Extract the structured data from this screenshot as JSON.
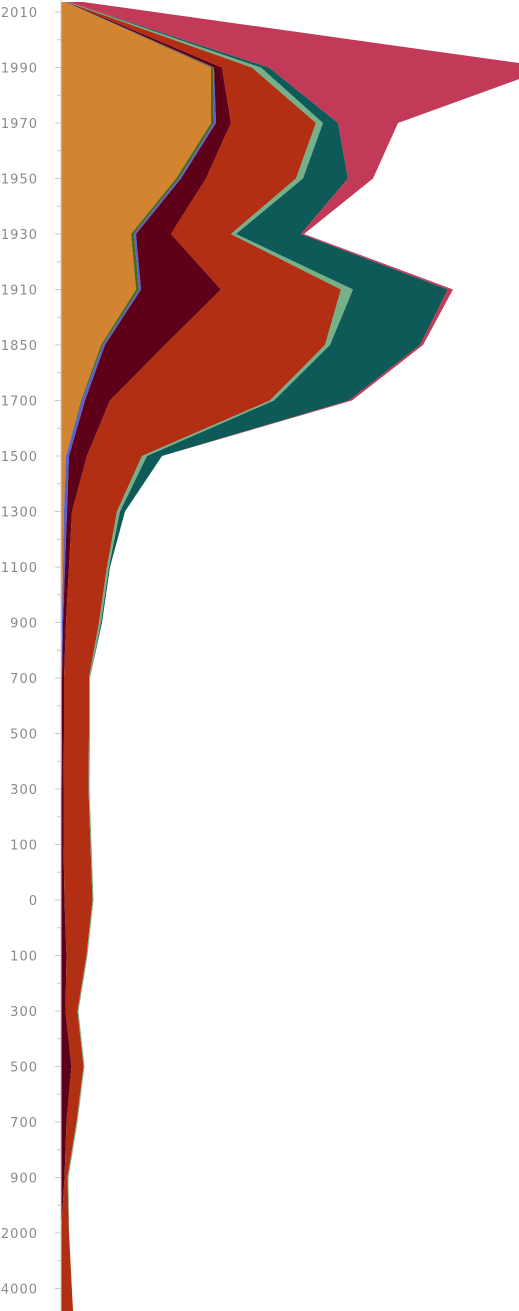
{
  "chart_data": {
    "type": "area",
    "orientation": "vertical-streamgraph",
    "title": "",
    "xlabel": "",
    "ylabel": "",
    "tick_labels": [
      "2010",
      "1990",
      "1970",
      "1950",
      "1930",
      "1910",
      "1850",
      "1700",
      "1500",
      "1300",
      "1100",
      "900",
      "700",
      "500",
      "300",
      "100",
      "0",
      "100",
      "300",
      "500",
      "700",
      "900",
      "2000",
      "4000"
    ],
    "categories": [
      "2010",
      "1990",
      "1970",
      "1950",
      "1930",
      "1910",
      "1850",
      "1700",
      "1500",
      "1300",
      "1100",
      "900",
      "700",
      "500",
      "300",
      "100",
      "0",
      "100",
      "300",
      "500",
      "700",
      "900",
      "2000",
      "4000"
    ],
    "series": [
      {
        "color": "#d38430",
        "values": [
          4,
          150,
          150,
          115,
          70,
          75,
          40,
          20,
          5,
          3,
          2,
          1,
          0.5,
          0.5,
          0.5,
          0.5,
          0.5,
          0.5,
          0.5,
          0.5,
          0.5,
          0.5,
          0,
          0
        ]
      },
      {
        "color": "#4e6b19",
        "values": [
          0.5,
          2,
          3,
          3,
          3,
          3,
          2,
          1,
          0,
          0,
          0,
          0,
          0,
          0,
          0,
          0,
          0,
          0,
          0,
          0,
          0,
          0,
          0,
          0
        ]
      },
      {
        "color": "#5b60d6",
        "values": [
          0.5,
          1,
          2,
          2,
          2,
          2,
          2,
          3,
          3,
          3,
          2,
          1,
          0.5,
          0.5,
          0,
          0,
          0,
          0,
          0,
          0,
          0,
          0,
          0,
          0
        ]
      },
      {
        "color": "#5e0018",
        "values": [
          1,
          8,
          15,
          25,
          35,
          80,
          60,
          25,
          18,
          5,
          4,
          3,
          2,
          2,
          2,
          2,
          3,
          5,
          4,
          10,
          5,
          3,
          0,
          0
        ]
      },
      {
        "color": "#b22f14",
        "values": [
          0,
          30,
          85,
          90,
          60,
          120,
          160,
          160,
          55,
          45,
          38,
          33,
          25,
          25,
          25,
          27,
          28,
          20,
          12,
          12,
          10,
          3,
          8,
          12
        ]
      },
      {
        "color": "#74b088",
        "values": [
          1,
          9,
          7,
          7,
          5,
          12,
          5,
          4,
          5,
          3,
          2,
          2,
          1,
          1,
          1,
          1,
          1,
          1,
          1,
          1,
          1,
          1,
          0,
          0
        ]
      },
      {
        "color": "#0e5a58",
        "values": [
          0,
          8,
          15,
          45,
          65,
          95,
          90,
          75,
          15,
          5,
          1,
          1,
          0,
          0,
          0,
          0,
          0,
          0,
          0,
          0,
          0,
          0,
          0,
          0
        ]
      },
      {
        "color": "#c33a58",
        "values": [
          15,
          282,
          60,
          25,
          3,
          5,
          3,
          3,
          0,
          0,
          0,
          0,
          0,
          0,
          0,
          0,
          0,
          0,
          0,
          0,
          0,
          0,
          0,
          0
        ]
      }
    ],
    "axis_color": "#c8c8c8",
    "grid": false,
    "legend": "none"
  }
}
